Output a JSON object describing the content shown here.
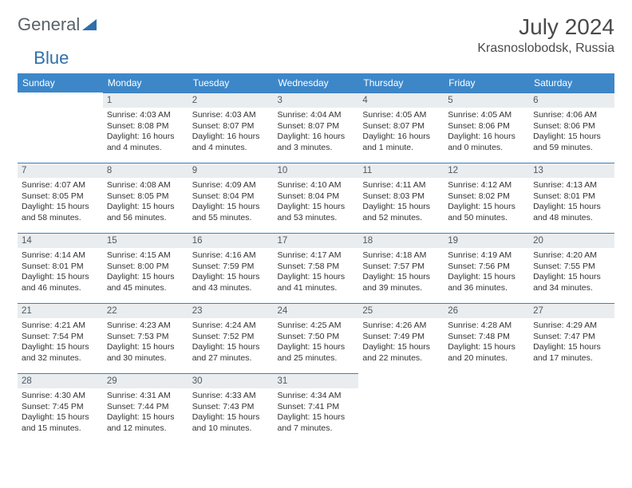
{
  "brand": {
    "part1": "General",
    "part2": "Blue"
  },
  "title": "July 2024",
  "location": "Krasnoslobodsk, Russia",
  "colors": {
    "header_bg": "#3d87c9",
    "header_text": "#ffffff",
    "datebar_bg": "#e9edef",
    "datebar_border": "#3b7fbf",
    "text": "#323232"
  },
  "dayHeaders": [
    "Sunday",
    "Monday",
    "Tuesday",
    "Wednesday",
    "Thursday",
    "Friday",
    "Saturday"
  ],
  "weeks": [
    [
      null,
      {
        "d": "1",
        "sr": "Sunrise: 4:03 AM",
        "ss": "Sunset: 8:08 PM",
        "dl1": "Daylight: 16 hours",
        "dl2": "and 4 minutes."
      },
      {
        "d": "2",
        "sr": "Sunrise: 4:03 AM",
        "ss": "Sunset: 8:07 PM",
        "dl1": "Daylight: 16 hours",
        "dl2": "and 4 minutes."
      },
      {
        "d": "3",
        "sr": "Sunrise: 4:04 AM",
        "ss": "Sunset: 8:07 PM",
        "dl1": "Daylight: 16 hours",
        "dl2": "and 3 minutes."
      },
      {
        "d": "4",
        "sr": "Sunrise: 4:05 AM",
        "ss": "Sunset: 8:07 PM",
        "dl1": "Daylight: 16 hours",
        "dl2": "and 1 minute."
      },
      {
        "d": "5",
        "sr": "Sunrise: 4:05 AM",
        "ss": "Sunset: 8:06 PM",
        "dl1": "Daylight: 16 hours",
        "dl2": "and 0 minutes."
      },
      {
        "d": "6",
        "sr": "Sunrise: 4:06 AM",
        "ss": "Sunset: 8:06 PM",
        "dl1": "Daylight: 15 hours",
        "dl2": "and 59 minutes."
      }
    ],
    [
      {
        "d": "7",
        "sr": "Sunrise: 4:07 AM",
        "ss": "Sunset: 8:05 PM",
        "dl1": "Daylight: 15 hours",
        "dl2": "and 58 minutes."
      },
      {
        "d": "8",
        "sr": "Sunrise: 4:08 AM",
        "ss": "Sunset: 8:05 PM",
        "dl1": "Daylight: 15 hours",
        "dl2": "and 56 minutes."
      },
      {
        "d": "9",
        "sr": "Sunrise: 4:09 AM",
        "ss": "Sunset: 8:04 PM",
        "dl1": "Daylight: 15 hours",
        "dl2": "and 55 minutes."
      },
      {
        "d": "10",
        "sr": "Sunrise: 4:10 AM",
        "ss": "Sunset: 8:04 PM",
        "dl1": "Daylight: 15 hours",
        "dl2": "and 53 minutes."
      },
      {
        "d": "11",
        "sr": "Sunrise: 4:11 AM",
        "ss": "Sunset: 8:03 PM",
        "dl1": "Daylight: 15 hours",
        "dl2": "and 52 minutes."
      },
      {
        "d": "12",
        "sr": "Sunrise: 4:12 AM",
        "ss": "Sunset: 8:02 PM",
        "dl1": "Daylight: 15 hours",
        "dl2": "and 50 minutes."
      },
      {
        "d": "13",
        "sr": "Sunrise: 4:13 AM",
        "ss": "Sunset: 8:01 PM",
        "dl1": "Daylight: 15 hours",
        "dl2": "and 48 minutes."
      }
    ],
    [
      {
        "d": "14",
        "sr": "Sunrise: 4:14 AM",
        "ss": "Sunset: 8:01 PM",
        "dl1": "Daylight: 15 hours",
        "dl2": "and 46 minutes."
      },
      {
        "d": "15",
        "sr": "Sunrise: 4:15 AM",
        "ss": "Sunset: 8:00 PM",
        "dl1": "Daylight: 15 hours",
        "dl2": "and 45 minutes."
      },
      {
        "d": "16",
        "sr": "Sunrise: 4:16 AM",
        "ss": "Sunset: 7:59 PM",
        "dl1": "Daylight: 15 hours",
        "dl2": "and 43 minutes."
      },
      {
        "d": "17",
        "sr": "Sunrise: 4:17 AM",
        "ss": "Sunset: 7:58 PM",
        "dl1": "Daylight: 15 hours",
        "dl2": "and 41 minutes."
      },
      {
        "d": "18",
        "sr": "Sunrise: 4:18 AM",
        "ss": "Sunset: 7:57 PM",
        "dl1": "Daylight: 15 hours",
        "dl2": "and 39 minutes."
      },
      {
        "d": "19",
        "sr": "Sunrise: 4:19 AM",
        "ss": "Sunset: 7:56 PM",
        "dl1": "Daylight: 15 hours",
        "dl2": "and 36 minutes."
      },
      {
        "d": "20",
        "sr": "Sunrise: 4:20 AM",
        "ss": "Sunset: 7:55 PM",
        "dl1": "Daylight: 15 hours",
        "dl2": "and 34 minutes."
      }
    ],
    [
      {
        "d": "21",
        "sr": "Sunrise: 4:21 AM",
        "ss": "Sunset: 7:54 PM",
        "dl1": "Daylight: 15 hours",
        "dl2": "and 32 minutes."
      },
      {
        "d": "22",
        "sr": "Sunrise: 4:23 AM",
        "ss": "Sunset: 7:53 PM",
        "dl1": "Daylight: 15 hours",
        "dl2": "and 30 minutes."
      },
      {
        "d": "23",
        "sr": "Sunrise: 4:24 AM",
        "ss": "Sunset: 7:52 PM",
        "dl1": "Daylight: 15 hours",
        "dl2": "and 27 minutes."
      },
      {
        "d": "24",
        "sr": "Sunrise: 4:25 AM",
        "ss": "Sunset: 7:50 PM",
        "dl1": "Daylight: 15 hours",
        "dl2": "and 25 minutes."
      },
      {
        "d": "25",
        "sr": "Sunrise: 4:26 AM",
        "ss": "Sunset: 7:49 PM",
        "dl1": "Daylight: 15 hours",
        "dl2": "and 22 minutes."
      },
      {
        "d": "26",
        "sr": "Sunrise: 4:28 AM",
        "ss": "Sunset: 7:48 PM",
        "dl1": "Daylight: 15 hours",
        "dl2": "and 20 minutes."
      },
      {
        "d": "27",
        "sr": "Sunrise: 4:29 AM",
        "ss": "Sunset: 7:47 PM",
        "dl1": "Daylight: 15 hours",
        "dl2": "and 17 minutes."
      }
    ],
    [
      {
        "d": "28",
        "sr": "Sunrise: 4:30 AM",
        "ss": "Sunset: 7:45 PM",
        "dl1": "Daylight: 15 hours",
        "dl2": "and 15 minutes."
      },
      {
        "d": "29",
        "sr": "Sunrise: 4:31 AM",
        "ss": "Sunset: 7:44 PM",
        "dl1": "Daylight: 15 hours",
        "dl2": "and 12 minutes."
      },
      {
        "d": "30",
        "sr": "Sunrise: 4:33 AM",
        "ss": "Sunset: 7:43 PM",
        "dl1": "Daylight: 15 hours",
        "dl2": "and 10 minutes."
      },
      {
        "d": "31",
        "sr": "Sunrise: 4:34 AM",
        "ss": "Sunset: 7:41 PM",
        "dl1": "Daylight: 15 hours",
        "dl2": "and 7 minutes."
      },
      null,
      null,
      null
    ]
  ]
}
